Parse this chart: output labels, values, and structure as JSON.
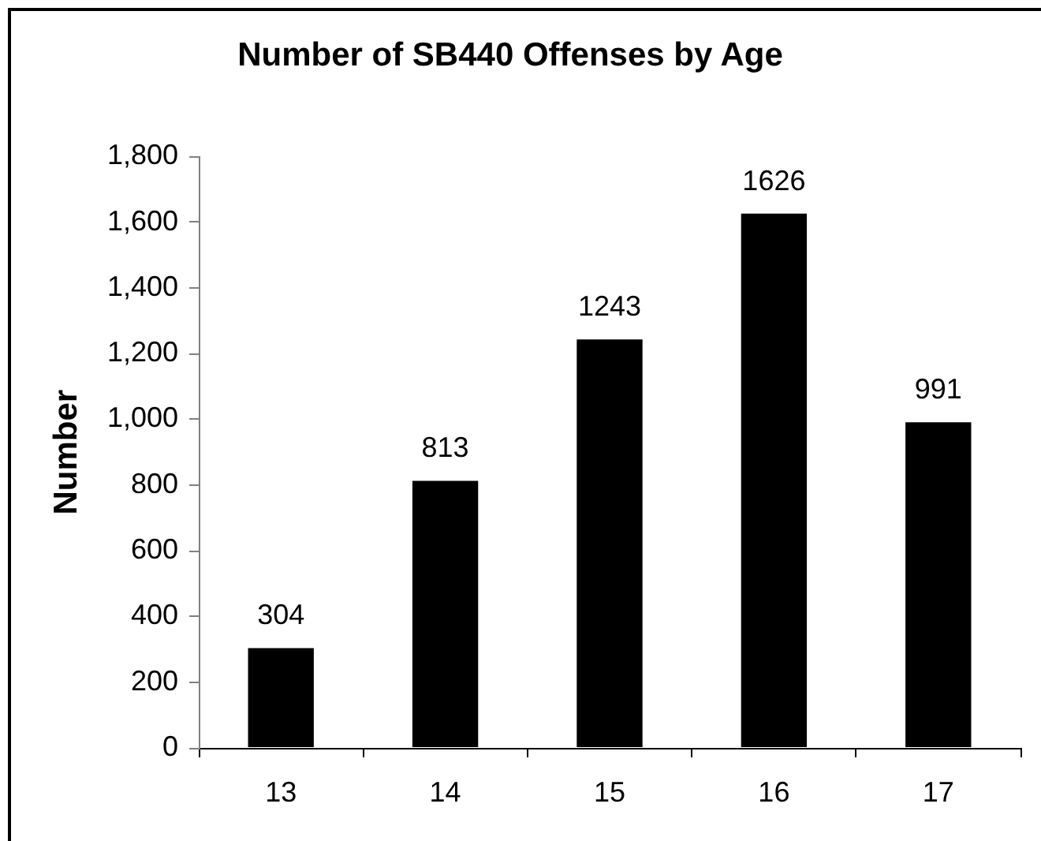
{
  "chart_data": {
    "type": "bar",
    "title": "Number of SB440 Offenses by Age",
    "ylabel": "Number",
    "categories": [
      "13",
      "14",
      "15",
      "16",
      "17"
    ],
    "values": [
      304,
      813,
      1243,
      1626,
      991
    ],
    "color": "#000000",
    "ylim": [
      0,
      1800
    ],
    "yticks": [
      0,
      200,
      400,
      600,
      800,
      {
        "value": 1000,
        "label": "1,000"
      },
      {
        "value": 1200,
        "label": "1,200"
      },
      {
        "value": 1400,
        "label": "1,400"
      },
      {
        "value": 1600,
        "label": "1,600"
      },
      {
        "value": 1800,
        "label": "1,800"
      }
    ],
    "data_labels": true,
    "grid": false,
    "legend": false
  }
}
